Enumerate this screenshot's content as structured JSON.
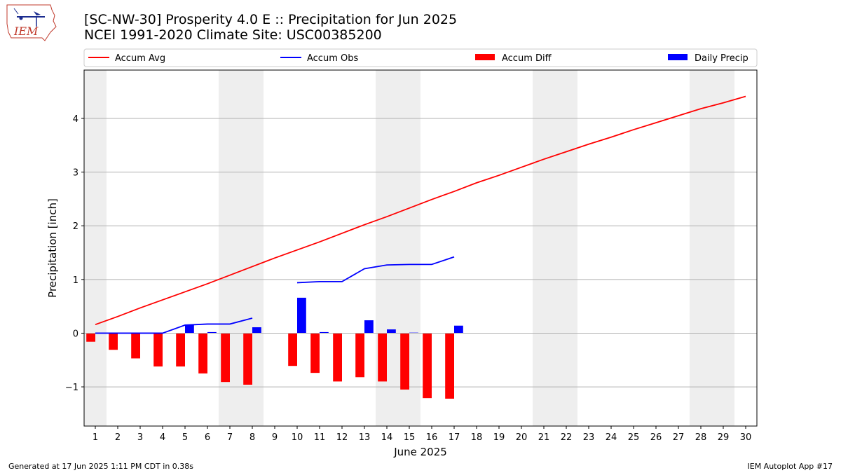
{
  "title_line1": "[SC-NW-30] Prosperity 4.0 E :: Precipitation for Jun 2025",
  "title_line2": "NCEI 1991-2020 Climate Site: USC00385200",
  "logo_text": "IEM",
  "footer_left": "Generated at 17 Jun 2025 1:11 PM CDT in 0.38s",
  "footer_right": "IEM Autoplot App #17",
  "colors": {
    "accum_avg": "#ff0000",
    "accum_obs": "#0000ff",
    "accum_diff": "#ff0000",
    "daily_precip": "#0000ff",
    "weekend_shade": "#eeeeee",
    "grid": "#b0b0b0"
  },
  "chart_data": {
    "type": "bar",
    "xlabel": "June 2025",
    "ylabel": "Precipitation [inch]",
    "xlim": [
      0.5,
      30.5
    ],
    "ylim": [
      -1.73,
      4.9
    ],
    "yticks": [
      -1,
      0,
      1,
      2,
      3,
      4
    ],
    "ytick_labels": [
      "−1",
      "0",
      "1",
      "2",
      "3",
      "4"
    ],
    "days": [
      1,
      2,
      3,
      4,
      5,
      6,
      7,
      8,
      9,
      10,
      11,
      12,
      13,
      14,
      15,
      16,
      17,
      18,
      19,
      20,
      21,
      22,
      23,
      24,
      25,
      26,
      27,
      28,
      29,
      30
    ],
    "weekend_days": [
      1,
      7,
      8,
      14,
      15,
      21,
      22,
      28,
      29
    ],
    "grid": "horizontal",
    "legend_position": "top",
    "legend": [
      {
        "label": "Accum Avg",
        "kind": "line",
        "series": "accum_avg"
      },
      {
        "label": "Accum Obs",
        "kind": "line",
        "series": "accum_obs"
      },
      {
        "label": "Accum Diff",
        "kind": "bar",
        "series": "accum_diff"
      },
      {
        "label": "Daily Precip",
        "kind": "bar",
        "series": "daily_precip"
      }
    ],
    "series": {
      "accum_avg": [
        0.16,
        0.31,
        0.47,
        0.62,
        0.77,
        0.92,
        1.08,
        1.24,
        1.4,
        1.55,
        1.7,
        1.86,
        2.02,
        2.17,
        2.33,
        2.49,
        2.64,
        2.8,
        2.94,
        3.09,
        3.24,
        3.38,
        3.52,
        3.65,
        3.79,
        3.92,
        4.05,
        4.18,
        4.29,
        4.41
      ],
      "accum_obs": [
        0.0,
        0.0,
        0.0,
        0.0,
        0.15,
        0.17,
        0.17,
        0.28,
        null,
        0.94,
        0.96,
        0.96,
        1.2,
        1.27,
        1.28,
        1.28,
        1.42,
        null,
        null,
        null,
        null,
        null,
        null,
        null,
        null,
        null,
        null,
        null,
        null,
        null
      ],
      "accum_diff": [
        -0.16,
        -0.31,
        -0.47,
        -0.62,
        -0.62,
        -0.75,
        -0.91,
        -0.96,
        null,
        -0.61,
        -0.74,
        -0.9,
        -0.82,
        -0.9,
        -1.05,
        -1.21,
        -1.22,
        null,
        null,
        null,
        null,
        null,
        null,
        null,
        null,
        null,
        null,
        null,
        null,
        null
      ],
      "daily_precip": [
        0.0,
        0.0,
        0.0,
        0.0,
        0.15,
        0.02,
        0.0,
        0.11,
        null,
        0.66,
        0.02,
        0.0,
        0.24,
        0.07,
        0.01,
        0.0,
        0.14,
        null,
        null,
        null,
        null,
        null,
        null,
        null,
        null,
        null,
        null,
        null,
        null,
        null
      ]
    }
  }
}
